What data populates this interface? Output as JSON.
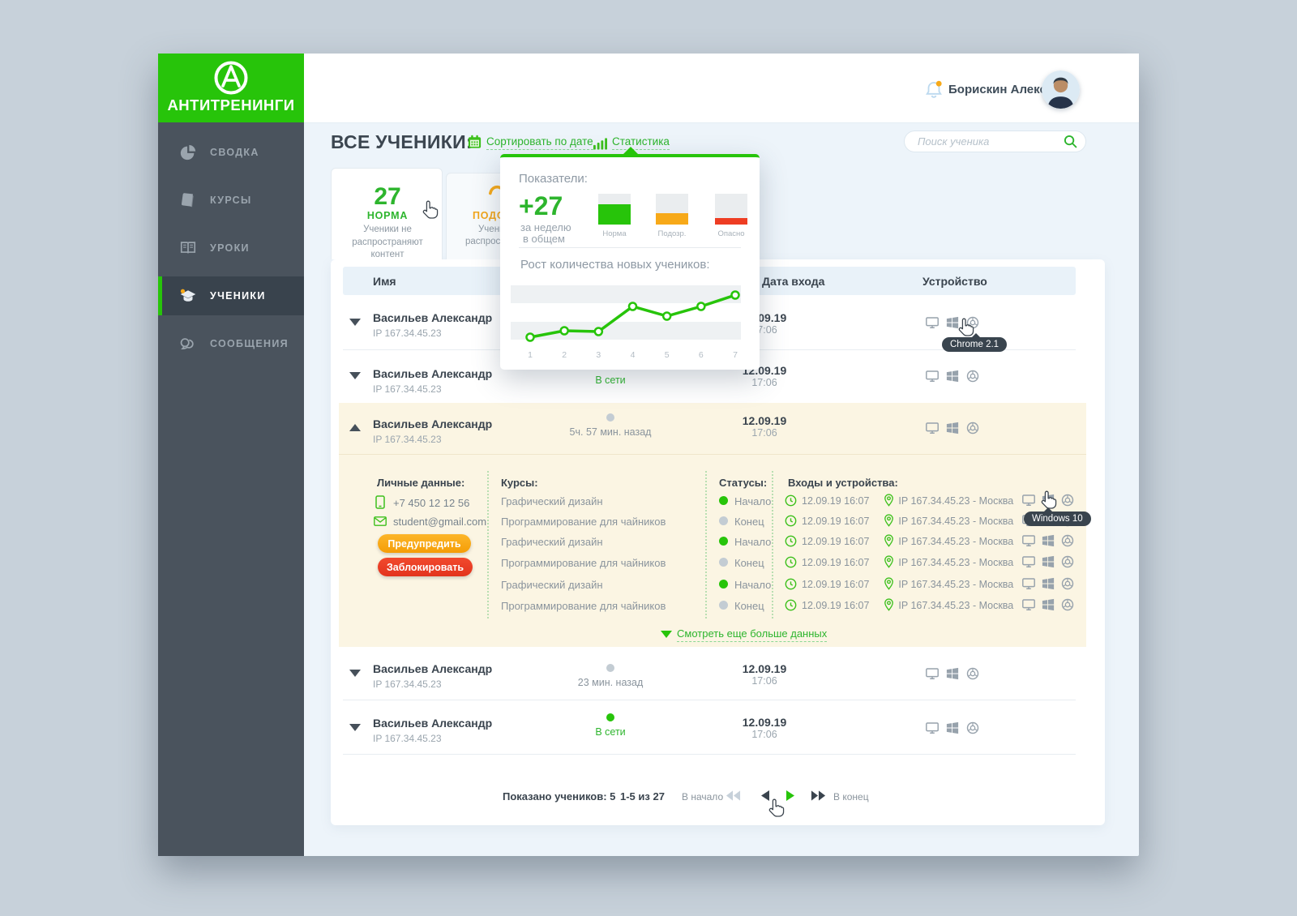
{
  "colors": {
    "green": "#27c40a",
    "green_text": "#2db52d",
    "orange": "#f7a919",
    "red": "#ee3d23",
    "gray_dot": "#c3ccd3",
    "dark": "#3a444e",
    "gray_text": "#8a949d",
    "beige": "#fbf5e3",
    "sidebar": "#4a535d",
    "bg": "#edf4fa",
    "backdrop": "#c7d1da"
  },
  "brand": {
    "name": "АНТИТРЕНИНГИ"
  },
  "topbar": {
    "user_name": "Борискин Алексей",
    "has_notification": true
  },
  "sidebar": {
    "items": [
      {
        "label": "СВОДКА",
        "icon": "pie-chart-icon",
        "active": false
      },
      {
        "label": "КУРСЫ",
        "icon": "book-icon",
        "active": false
      },
      {
        "label": "УРОКИ",
        "icon": "open-book-icon",
        "active": false
      },
      {
        "label": "УЧЕНИКИ",
        "icon": "graduation-cap-icon",
        "active": true,
        "badge": true
      },
      {
        "label": "СООБЩЕНИЯ",
        "icon": "chat-icon",
        "active": false
      }
    ]
  },
  "header": {
    "title": "ВСЕ УЧЕНИКИ:",
    "sort_label": "Сортировать по дате",
    "stats_label": "Статистика",
    "search_placeholder": "Поиск ученика"
  },
  "tabs": {
    "norm": {
      "value": "27",
      "label": "НОРМА",
      "description": "Ученики не распространяют контент"
    },
    "suspect": {
      "label": "ПОДОЗ",
      "desc_line1": "Учени",
      "desc_line2": "распростр"
    }
  },
  "popup": {
    "title": "Показатели:",
    "delta": "+27",
    "delta_caption1": "за неделю",
    "delta_caption2": "в общем",
    "bars": [
      {
        "label": "Норма",
        "percent": 66,
        "color": "#27c40a"
      },
      {
        "label": "Подозр.",
        "percent": 36,
        "color": "#f7a919"
      },
      {
        "label": "Опасно",
        "percent": 22,
        "color": "#ee3d23"
      }
    ]
  },
  "chart_data": {
    "type": "line",
    "title": "Рост количества новых учеников:",
    "x": [
      "1",
      "2",
      "3",
      "4",
      "5",
      "6",
      "7"
    ],
    "values": [
      1,
      1.8,
      1.7,
      4.8,
      3.6,
      4.8,
      6.2
    ],
    "ylim": [
      0,
      8
    ],
    "line_color": "#27c40a",
    "marker": "open-circle",
    "grid": "horizontal-bands",
    "legend": "none"
  },
  "table": {
    "col_name": "Имя",
    "col_date": "Дата входа",
    "col_device": "Устройство",
    "rows": [
      {
        "name": "Васильев Александр",
        "ip": "IP 167.34.45.23",
        "status": "",
        "online": false,
        "date": "12.09.19",
        "time": "17:06",
        "devices": [
          "desktop-icon",
          "windows-icon",
          "chrome-icon"
        ]
      },
      {
        "name": "Васильев Александр",
        "ip": "IP 167.34.45.23",
        "status": "В сети",
        "online": true,
        "date": "12.09.19",
        "time": "17:06",
        "devices": [
          "desktop-icon",
          "windows-icon",
          "chrome-icon"
        ]
      },
      {
        "name": "Васильев Александр",
        "ip": "IP 167.34.45.23",
        "status": "5ч. 57 мин. назад",
        "online": false,
        "date": "12.09.19",
        "time": "17:06",
        "devices": [
          "desktop-icon",
          "windows-icon",
          "chrome-icon"
        ],
        "expanded": true
      },
      {
        "name": "Васильев Александр",
        "ip": "IP 167.34.45.23",
        "status": "23 мин. назад",
        "online": false,
        "date": "12.09.19",
        "time": "17:06",
        "devices": [
          "desktop-icon",
          "windows-icon",
          "chrome-icon"
        ]
      },
      {
        "name": "Васильев Александр",
        "ip": "IP 167.34.45.23",
        "status": "В сети",
        "online": true,
        "date": "12.09.19",
        "time": "17:06",
        "devices": [
          "desktop-icon",
          "windows-icon",
          "chrome-icon"
        ]
      }
    ]
  },
  "detail": {
    "personal_title": "Личные данные:",
    "phone": "+7 450 12 12 56",
    "email": "student@gmail.com",
    "warn_button": "Предупредить",
    "block_button": "Заблокировать",
    "courses_title": "Курсы:",
    "courses": [
      "Графический дизайн",
      "Программирование для чайников",
      "Графический дизайн",
      "Программирование для чайников",
      "Графический дизайн",
      "Программирование для чайников"
    ],
    "statuses_title": "Статусы:",
    "statuses": [
      {
        "label": "Начало"
      },
      {
        "label": "Конец"
      },
      {
        "label": "Начало"
      },
      {
        "label": "Конец"
      },
      {
        "label": "Начало"
      },
      {
        "label": "Конец"
      }
    ],
    "logins_title": "Входы и устройства:",
    "logins": [
      {
        "datetime": "12.09.19  16:07",
        "location": "IP 167.34.45.23 - Москва"
      },
      {
        "datetime": "12.09.19  16:07",
        "location": "IP 167.34.45.23 - Москва"
      },
      {
        "datetime": "12.09.19  16:07",
        "location": "IP 167.34.45.23 - Москва"
      },
      {
        "datetime": "12.09.19  16:07",
        "location": "IP 167.34.45.23 - Москва"
      },
      {
        "datetime": "12.09.19  16:07",
        "location": "IP 167.34.45.23 - Москва"
      },
      {
        "datetime": "12.09.19  16:07",
        "location": "IP 167.34.45.23 - Москва"
      }
    ],
    "more_link": "Смотреть еще больше данных"
  },
  "tooltips": {
    "chrome": "Chrome 2.1",
    "windows": "Windows 10"
  },
  "pagination": {
    "summary": "Показано учеников: 5",
    "range": "1-5 из 27",
    "first_label": "В начало",
    "last_label": "В конец"
  }
}
